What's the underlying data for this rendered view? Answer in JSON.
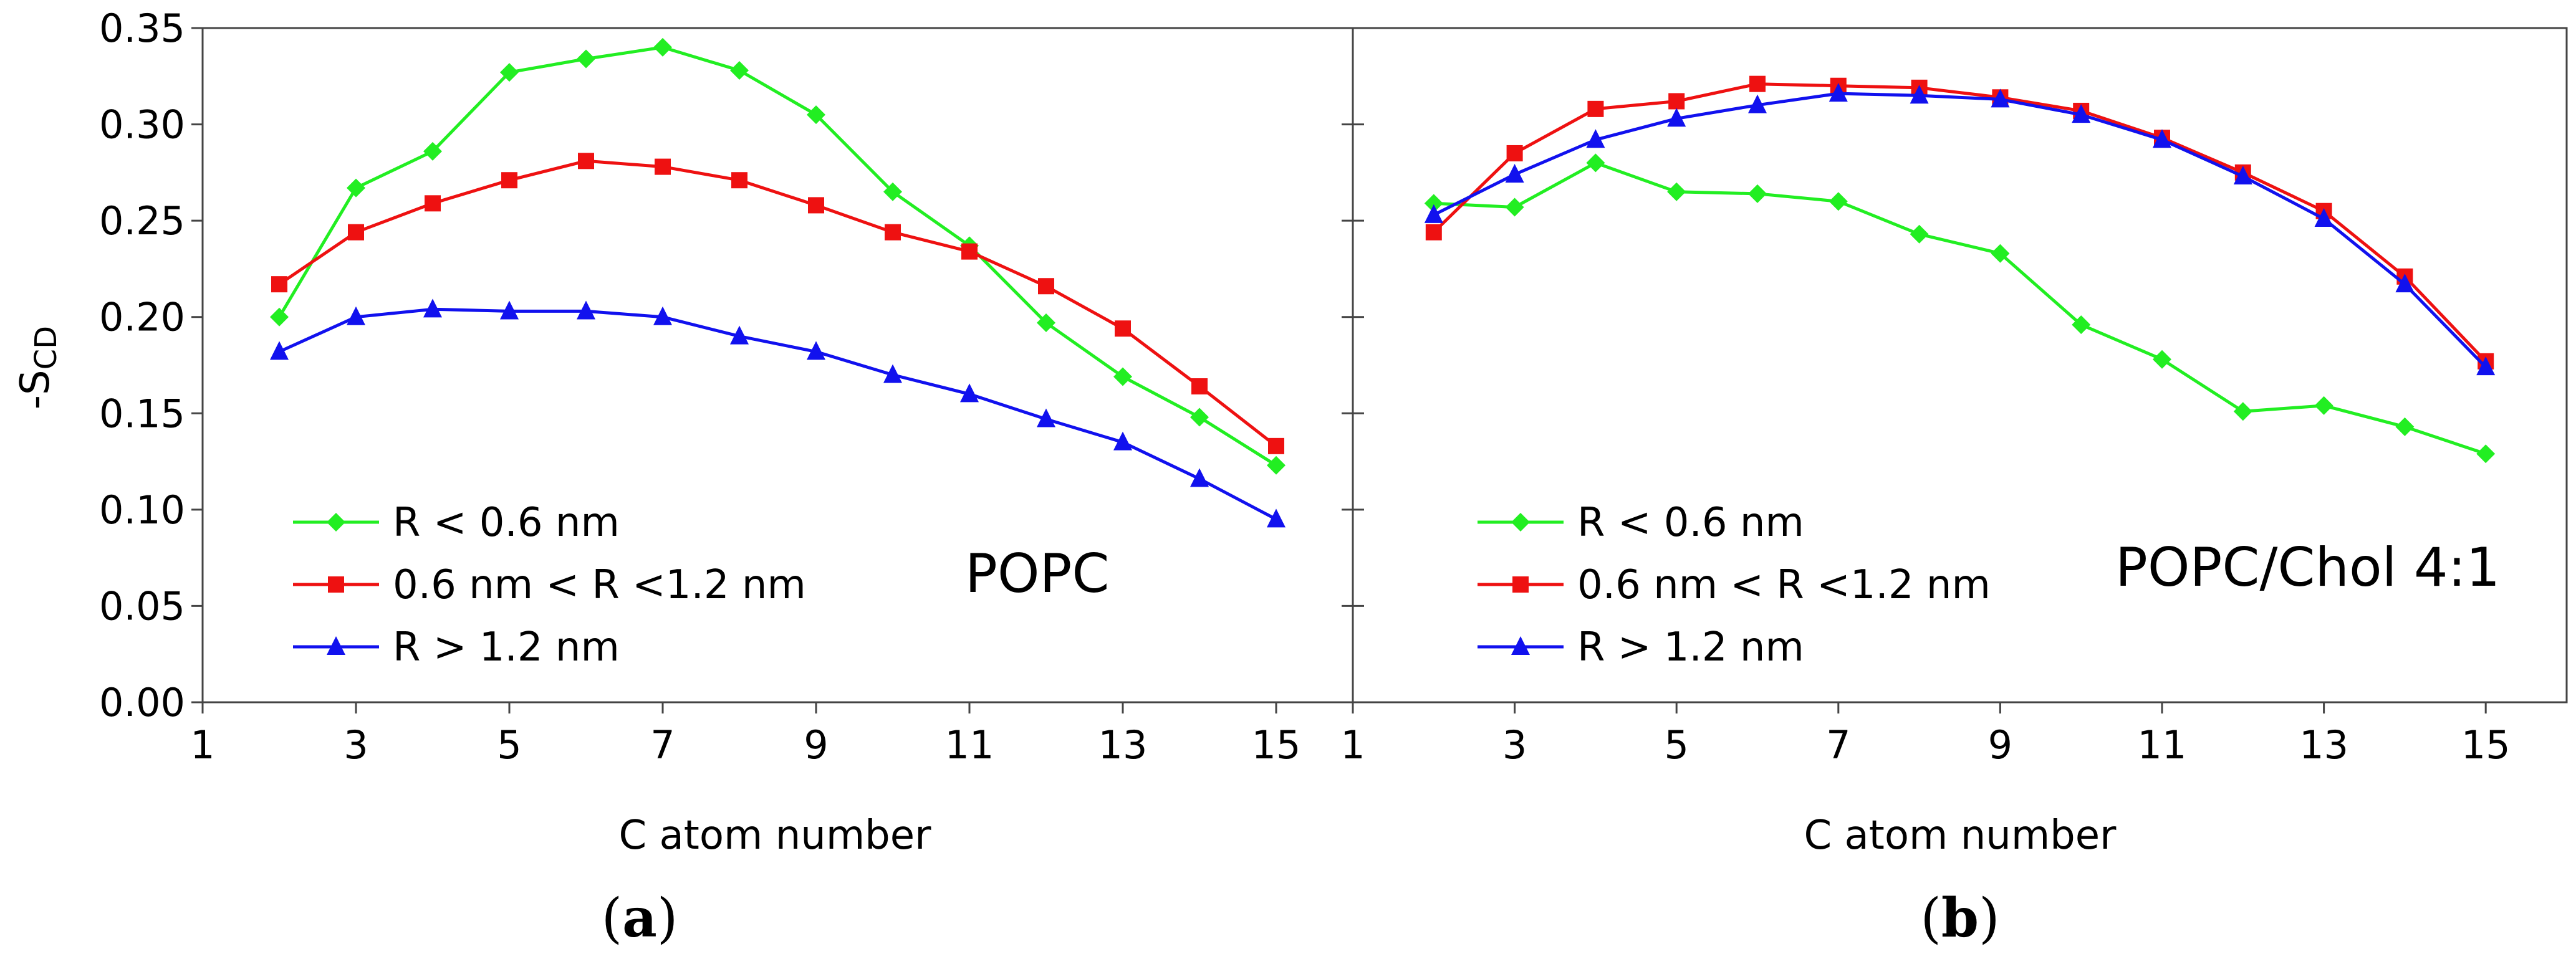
{
  "figure": {
    "ylabel_main": "-S",
    "ylabel_sub": "CD",
    "xlabel": "C atom number",
    "tag_open": "(",
    "tag_close": ")"
  },
  "chart_data": [
    {
      "type": "line",
      "panel": "a",
      "title": "POPC",
      "xlabel": "C atom number",
      "ylabel": "-S_CD",
      "xlim": [
        1,
        16
      ],
      "ylim": [
        0.0,
        0.35
      ],
      "xticks": [
        "1",
        "3",
        "5",
        "7",
        "9",
        "11",
        "13",
        "15"
      ],
      "yticks": [
        "0.00",
        "0.05",
        "0.10",
        "0.15",
        "0.20",
        "0.25",
        "0.30",
        "0.35"
      ],
      "x": [
        2,
        3,
        4,
        5,
        6,
        7,
        8,
        9,
        10,
        11,
        12,
        13,
        14,
        15
      ],
      "series": [
        {
          "name": "R < 0.6 nm",
          "color": "#22ee22",
          "marker": "diamond",
          "values": [
            0.2,
            0.267,
            0.286,
            0.327,
            0.334,
            0.34,
            0.328,
            0.305,
            0.265,
            0.237,
            0.197,
            0.169,
            0.148,
            0.123
          ]
        },
        {
          "name": "0.6 nm < R <1.2 nm",
          "color": "#ee1111",
          "marker": "square",
          "values": [
            0.217,
            0.244,
            0.259,
            0.271,
            0.281,
            0.278,
            0.271,
            0.258,
            0.244,
            0.234,
            0.216,
            0.194,
            0.164,
            0.133
          ]
        },
        {
          "name": "R > 1.2 nm",
          "color": "#1111ee",
          "marker": "triangle",
          "values": [
            0.182,
            0.2,
            0.204,
            0.203,
            0.203,
            0.2,
            0.19,
            0.182,
            0.17,
            0.16,
            0.147,
            0.135,
            0.116,
            0.095
          ]
        }
      ]
    },
    {
      "type": "line",
      "panel": "b",
      "title": "POPC/Chol 4:1",
      "xlabel": "C atom number",
      "ylabel": "",
      "xlim": [
        1,
        16
      ],
      "ylim": [
        0.0,
        0.35
      ],
      "xticks": [
        "1",
        "3",
        "5",
        "7",
        "9",
        "11",
        "13",
        "15"
      ],
      "yticks": [],
      "x": [
        2,
        3,
        4,
        5,
        6,
        7,
        8,
        9,
        10,
        11,
        12,
        13,
        14,
        15
      ],
      "series": [
        {
          "name": "R < 0.6 nm",
          "color": "#22ee22",
          "marker": "diamond",
          "values": [
            0.259,
            0.257,
            0.28,
            0.265,
            0.264,
            0.26,
            0.243,
            0.233,
            0.196,
            0.178,
            0.151,
            0.154,
            0.143,
            0.129
          ]
        },
        {
          "name": "0.6 nm < R <1.2 nm",
          "color": "#ee1111",
          "marker": "square",
          "values": [
            0.244,
            0.285,
            0.308,
            0.312,
            0.321,
            0.32,
            0.319,
            0.314,
            0.307,
            0.293,
            0.275,
            0.255,
            0.221,
            0.177
          ]
        },
        {
          "name": "R > 1.2 nm",
          "color": "#1111ee",
          "marker": "triangle",
          "values": [
            0.253,
            0.274,
            0.292,
            0.303,
            0.31,
            0.316,
            0.315,
            0.313,
            0.305,
            0.292,
            0.273,
            0.251,
            0.217,
            0.174
          ]
        }
      ]
    }
  ]
}
